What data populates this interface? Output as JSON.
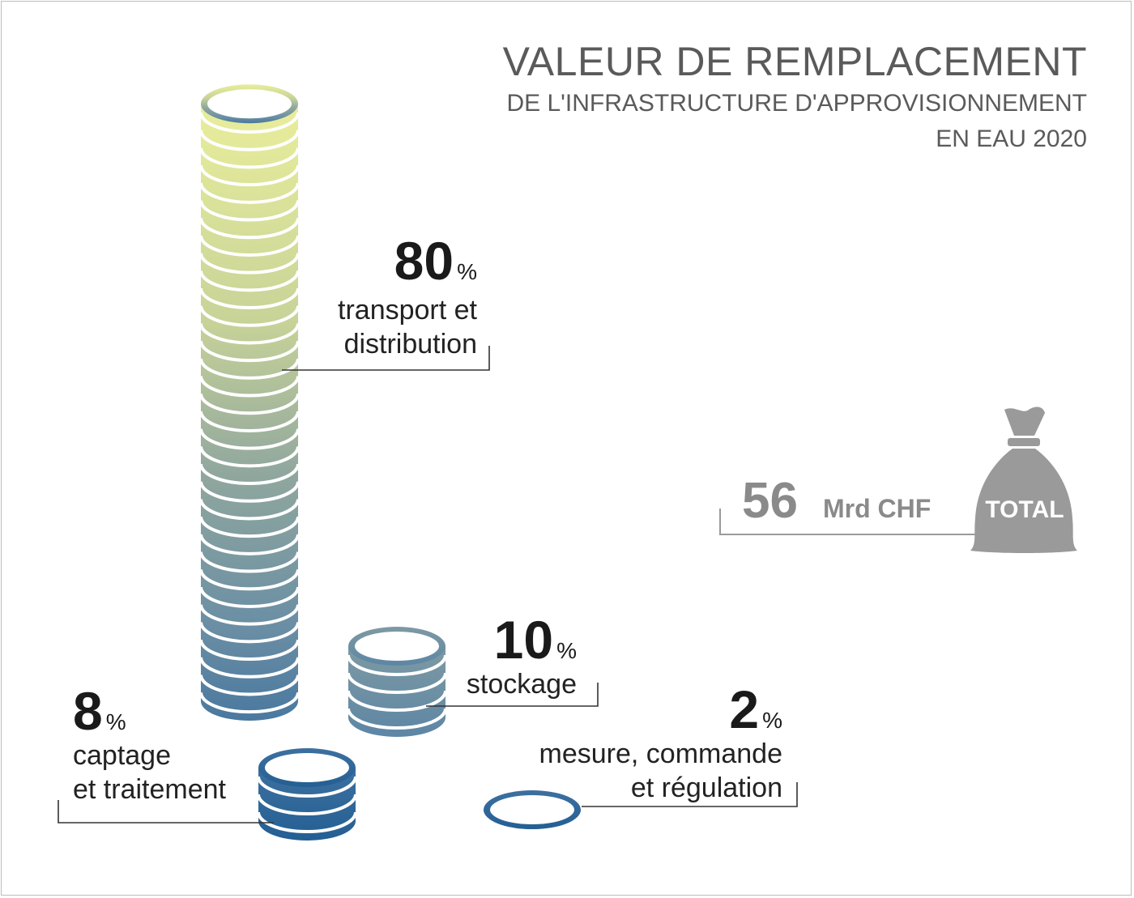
{
  "title": {
    "line1": "VALEUR DE REMPLACEMENT",
    "line2": "DE L'INFRASTRUCTURE D'APPROVISIONNEMENT",
    "line3": "EN EAU 2020"
  },
  "total": {
    "value": "56",
    "unit": "Mrd CHF",
    "bag_label": "TOTAL"
  },
  "percent_symbol": "%",
  "chart_data": {
    "type": "bar",
    "title": "VALEUR DE REMPLACEMENT DE L'INFRASTRUCTURE D'APPROVISIONNEMENT EN EAU 2020",
    "unit": "%",
    "total": "56 Mrd CHF",
    "categories": [
      "transport et distribution",
      "stockage",
      "captage et traitement",
      "mesure, commande et régulation"
    ],
    "values": [
      80,
      10,
      8,
      2
    ],
    "labels": {
      "transport": {
        "value": "80",
        "line1": "transport et",
        "line2": "distribution"
      },
      "stockage": {
        "value": "10",
        "line1": "stockage"
      },
      "captage": {
        "value": "8",
        "line1": "captage",
        "line2": "et traitement"
      },
      "mesure": {
        "value": "2",
        "line1": "mesure, commande",
        "line2": "et régulation"
      }
    },
    "colors": {
      "top": "#e6eb9c",
      "middle": "#8fa8a0",
      "bottom": "#2f6797",
      "bag": "#9a9a9a",
      "leader": "#333333"
    }
  }
}
